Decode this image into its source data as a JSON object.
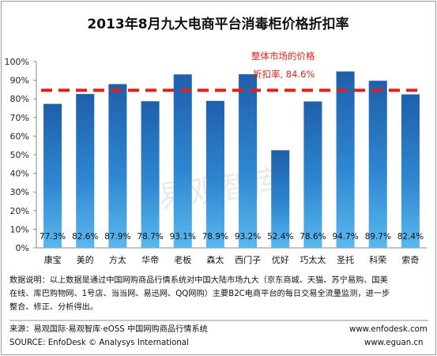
{
  "chart_data": {
    "type": "bar",
    "title": "2013年8月九大电商平台消毒柜价格折扣率",
    "categories": [
      "康宝",
      "美的",
      "方太",
      "华帝",
      "老板",
      "森太",
      "西门子",
      "优好",
      "巧太太",
      "圣托",
      "科荣",
      "索奇"
    ],
    "values": [
      77.3,
      82.6,
      87.9,
      78.7,
      93.1,
      78.9,
      93.2,
      52.4,
      78.6,
      94.7,
      89.7,
      82.4
    ],
    "value_labels": [
      "77.3%",
      "82.6%",
      "87.9%",
      "78.7%",
      "93.1%",
      "78.9%",
      "93.2%",
      "52.4%",
      "78.6%",
      "94.7%",
      "89.7%",
      "82.4%"
    ],
    "ylim": [
      0,
      100
    ],
    "yticks": [
      "0%",
      "10%",
      "20%",
      "30%",
      "40%",
      "50%",
      "60%",
      "70%",
      "80%",
      "90%",
      "100%"
    ],
    "reference_line": {
      "value": 84.6,
      "label_line1": "整体市场的价格",
      "label_line2": "折扣率, 84.6%",
      "color": "#e0201a"
    },
    "bar_color_top": "#1f5faa",
    "bar_color_bottom": "#5ab8ee",
    "grid": false,
    "legend": "none"
  },
  "watermark": "易观智库",
  "notes": {
    "line1": "数据说明：以上数据是通过中国网购商品行情系统对中国大陆市场九大（京东商城、天猫、苏宁易购、国美",
    "line2": "在线、库巴购物网、1号店、当当网、易迅网、QQ网购）主要B2C电商平台的每日交易全流量监测，进一步",
    "line3": "整合、修正、分析得出。"
  },
  "footer": {
    "source_cn": "来源：易观国际·易观智库·eOSS 中国网购商品行情系统",
    "source_en": "SOURCE: EnfoDesk © Analysys International",
    "url1": "www.enfodesk.com",
    "url2": "www.eguan.cn"
  }
}
